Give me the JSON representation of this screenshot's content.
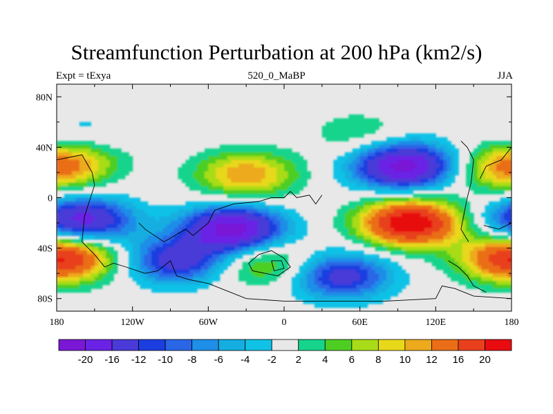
{
  "chart_data": {
    "type": "heatmap",
    "title": "Streamfunction Perturbation at 200 hPa (km2/s)",
    "subtitle_left": "Expt = tExya",
    "subtitle_center": "520_0_MaBP",
    "subtitle_right": "JJA",
    "x_ticks": [
      "180",
      "120W",
      "60W",
      "0",
      "60E",
      "120E",
      "180"
    ],
    "x_range": [
      -180,
      180
    ],
    "y_ticks": [
      "80N",
      "40N",
      "0",
      "40S",
      "80S"
    ],
    "y_range": [
      -90,
      90
    ],
    "colorbar_labels": [
      "-20",
      "-16",
      "-12",
      "-10",
      "-8",
      "-6",
      "-4",
      "-2",
      "2",
      "4",
      "6",
      "8",
      "10",
      "12",
      "16",
      "20"
    ],
    "colorbar_colors": [
      "#7a18d6",
      "#6a22e4",
      "#4a3ad8",
      "#1c3ee0",
      "#2a66e6",
      "#1f8ee8",
      "#15aee0",
      "#10c2e6",
      "#e8e8e8",
      "#16d48c",
      "#4ece22",
      "#a8dc18",
      "#e8d81a",
      "#ecaa1c",
      "#ea6e18",
      "#e8401c",
      "#e80c10"
    ],
    "features": [
      {
        "lon": 100,
        "lat": -20,
        "value": 24
      },
      {
        "lon": 95,
        "lat": 25,
        "value": -22
      },
      {
        "lon": -40,
        "lat": -25,
        "value": -22
      },
      {
        "lon": -160,
        "lat": -18,
        "value": -18
      },
      {
        "lon": -30,
        "lat": 18,
        "value": 12
      },
      {
        "lon": -170,
        "lat": 28,
        "value": 10
      },
      {
        "lon": -170,
        "lat": -48,
        "value": 12
      },
      {
        "lon": 175,
        "lat": -48,
        "value": 10
      },
      {
        "lon": -85,
        "lat": -50,
        "value": -14
      },
      {
        "lon": 45,
        "lat": -62,
        "value": -14
      },
      {
        "lon": -15,
        "lat": -52,
        "value": 8
      },
      {
        "lon": 60,
        "lat": 50,
        "value": 4
      },
      {
        "lon": -160,
        "lat": 52,
        "value": -3
      },
      {
        "lon": 170,
        "lat": 20,
        "value": 6
      }
    ]
  }
}
